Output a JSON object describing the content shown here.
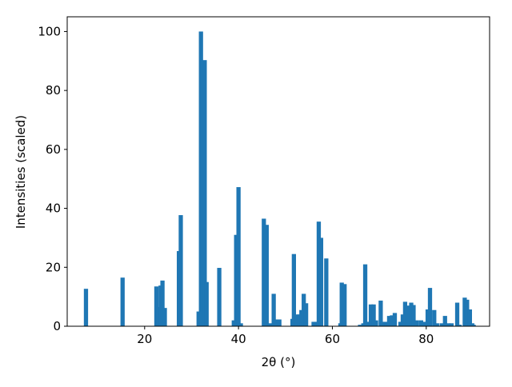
{
  "chart_data": {
    "type": "bar",
    "x_label": "2θ (°)",
    "y_label": "Intensities (scaled)",
    "color": "#1f77b4",
    "x": [
      7.5,
      15.3,
      22.5,
      23.0,
      23.4,
      23.8,
      24.3,
      27.3,
      27.7,
      31.5,
      32.0,
      32.8,
      33.2,
      35.9,
      39.0,
      39.5,
      40.0,
      40.5,
      45.4,
      46.0,
      46.7,
      47.5,
      48.0,
      48.7,
      51.5,
      51.8,
      52.4,
      53.0,
      53.4,
      53.9,
      54.4,
      56.0,
      56.6,
      57.1,
      57.6,
      58.7,
      61.7,
      62.0,
      62.6,
      65.9,
      66.6,
      67.0,
      67.7,
      68.2,
      68.8,
      69.3,
      70.3,
      70.7,
      71.5,
      72.1,
      72.7,
      73.3,
      74.5,
      75.0,
      75.5,
      76.0,
      76.8,
      77.3,
      78.0,
      78.9,
      79.5,
      80.3,
      80.8,
      81.7,
      82.3,
      83.3,
      84.0,
      84.7,
      85.4,
      86.6,
      87.1,
      88.2,
      88.7,
      89.3,
      89.8,
      90.1
    ],
    "values": [
      12.7,
      16.5,
      13.5,
      6.5,
      13.8,
      15.5,
      6.2,
      25.5,
      37.7,
      5,
      100,
      90.3,
      15,
      19.8,
      2,
      31,
      47.2,
      1,
      36.5,
      34.4,
      1,
      11,
      2.3,
      2.3,
      2.5,
      24.5,
      4,
      4,
      5.5,
      11,
      7.8,
      1.5,
      1.5,
      35.5,
      30,
      23,
      1,
      14.8,
      14.3,
      0.5,
      1,
      21,
      1.5,
      7.4,
      7.4,
      2,
      8.7,
      1.5,
      1.5,
      3.5,
      3.7,
      4.5,
      1.5,
      4,
      8.3,
      7,
      8,
      7.2,
      2,
      2,
      1.5,
      5.7,
      13,
      5.5,
      1,
      1,
      3.5,
      1,
      1,
      8,
      0.5,
      9.7,
      9,
      5.7,
      1,
      0.5
    ],
    "xlim": [
      3.5,
      93.5
    ],
    "ylim": [
      0,
      105
    ],
    "xticks": [
      20,
      40,
      60,
      80
    ],
    "yticks": [
      0,
      20,
      40,
      60,
      80,
      100
    ]
  }
}
